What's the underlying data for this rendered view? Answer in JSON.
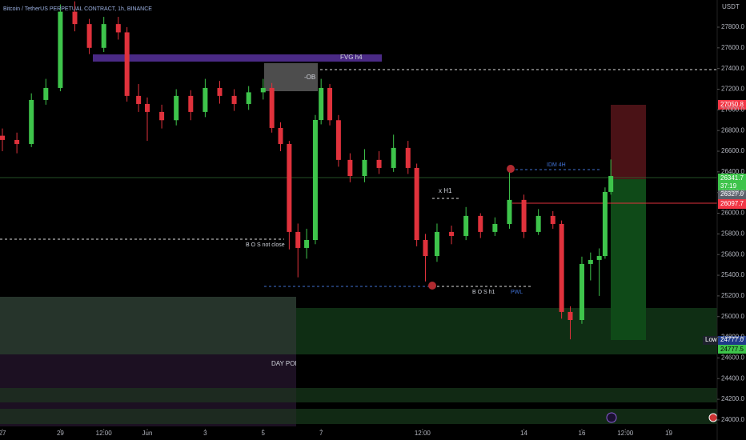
{
  "chart_data": {
    "type": "candlestick",
    "title": "Bitcoin / TetherUS PERPETUAL CONTRACT, 1h, BINANCE",
    "currency": "USDT",
    "up_color": "#3ec44b",
    "down_color": "#e0323c",
    "x": [
      0,
      0.5,
      1,
      1.5,
      2,
      2.5,
      3,
      3.5,
      4,
      4.3,
      4.7,
      5,
      5.5,
      6,
      6.5,
      7,
      7.5,
      8,
      8.5,
      9,
      9.3,
      9.6,
      9.9,
      10.2,
      10.5,
      10.8,
      11,
      11.3,
      11.6,
      12,
      12.5,
      13,
      13.5,
      14,
      14.3,
      14.6,
      15,
      15.5,
      16,
      16.5,
      17,
      17.5,
      18,
      18.5,
      19,
      19.3,
      19.6,
      20,
      20.3,
      20.6,
      20.8,
      21
    ],
    "open": [
      26750,
      26709,
      26670,
      27096,
      27212,
      27950,
      27830,
      27600,
      27830,
      27750,
      27135,
      27057,
      26980,
      26900,
      27135,
      26980,
      27212,
      27135,
      27057,
      27170,
      27212,
      26825,
      26670,
      25819,
      25664,
      25741,
      26902,
      27212,
      26900,
      26516,
      26360,
      26516,
      26438,
      26632,
      26438,
      25741,
      25586,
      25819,
      25780,
      25974,
      25819,
      25896,
      26129,
      25819,
      25974,
      25896,
      25045,
      24967,
      25509,
      25548,
      25586,
      26206
    ],
    "high": [
      26820,
      26780,
      27160,
      27300,
      28020,
      28050,
      27880,
      27900,
      27900,
      27800,
      27250,
      27120,
      27050,
      27200,
      27190,
      27300,
      27280,
      27200,
      27230,
      27300,
      27260,
      26880,
      26700,
      25900,
      25850,
      26950,
      27300,
      27250,
      26950,
      26580,
      26620,
      26600,
      26760,
      26700,
      26480,
      25800,
      25900,
      25880,
      26060,
      26000,
      25960,
      26400,
      26180,
      26040,
      26020,
      25930,
      25100,
      25580,
      25620,
      25660,
      26250,
      26520
    ],
    "low": [
      26600,
      26580,
      26640,
      27050,
      27180,
      27760,
      27540,
      27560,
      27680,
      27080,
      26980,
      26700,
      26820,
      26850,
      26900,
      26930,
      27060,
      26990,
      27000,
      27100,
      26780,
      26600,
      25650,
      25380,
      25560,
      25700,
      26860,
      26850,
      26450,
      26300,
      26300,
      26380,
      26400,
      26380,
      25680,
      25340,
      25530,
      25700,
      25740,
      25760,
      25780,
      25850,
      25760,
      25790,
      25850,
      24980,
      24780,
      24930,
      25350,
      25200,
      25560,
      26180
    ],
    "close": [
      26709,
      26670,
      27096,
      27212,
      27950,
      27830,
      27600,
      27830,
      27750,
      27135,
      27057,
      26980,
      26900,
      27135,
      26980,
      27212,
      27135,
      27057,
      27170,
      27212,
      26825,
      26670,
      25819,
      25664,
      25741,
      26902,
      27212,
      26900,
      26516,
      26360,
      26516,
      26438,
      26632,
      26438,
      25741,
      25586,
      25819,
      25780,
      25974,
      25819,
      25896,
      26129,
      25819,
      25974,
      25896,
      25045,
      24967,
      25509,
      25548,
      25586,
      26206,
      26360
    ],
    "xlim": [
      -0.083,
      24.67
    ],
    "xticks": [
      {
        "value": 0,
        "label": "27"
      },
      {
        "value": 2,
        "label": "29"
      },
      {
        "value": 3.5,
        "label": "12:00"
      },
      {
        "value": 5,
        "label": "Jun"
      },
      {
        "value": 7,
        "label": "3"
      },
      {
        "value": 9,
        "label": "5"
      },
      {
        "value": 11,
        "label": "7"
      },
      {
        "value": 14.5,
        "label": "12:00"
      },
      {
        "value": 18,
        "label": "14"
      },
      {
        "value": 20,
        "label": "16"
      },
      {
        "value": 21.5,
        "label": "12:00"
      },
      {
        "value": 23,
        "label": "19"
      }
    ],
    "ylim": [
      23806,
      28063
    ],
    "yticks": [
      {
        "value": 24000,
        "label": "24000.0"
      },
      {
        "value": 24200,
        "label": "24200.0"
      },
      {
        "value": 24400,
        "label": "24400.0"
      },
      {
        "value": 24600,
        "label": "24600.0"
      },
      {
        "value": 24800,
        "label": "24800.0"
      },
      {
        "value": 25000,
        "label": "25000.0"
      },
      {
        "value": 25200,
        "label": "25200.0"
      },
      {
        "value": 25400,
        "label": "25400.0"
      },
      {
        "value": 25600,
        "label": "25600.0"
      },
      {
        "value": 25800,
        "label": "25800.0"
      },
      {
        "value": 26000,
        "label": "26000.0"
      },
      {
        "value": 26200,
        "label": "26200.0"
      },
      {
        "value": 26400,
        "label": "26400.0"
      },
      {
        "value": 26600,
        "label": "26600.0"
      },
      {
        "value": 26800,
        "label": "26800.0"
      },
      {
        "value": 27000,
        "label": "27000.0"
      },
      {
        "value": 27200,
        "label": "27200.0"
      },
      {
        "value": 27400,
        "label": "27400.0"
      },
      {
        "value": 27600,
        "label": "27600.0"
      },
      {
        "value": 27800,
        "label": "27800.0"
      }
    ],
    "annotations": {
      "fvg": "FVG h4",
      "ob": "-OB",
      "bos_not_close": "B O S not close",
      "xh1": "x H1",
      "idm": "IDM 4H",
      "bos_h1": "B O S h1",
      "pwl": "PWL",
      "day_poi": "DAY POI",
      "low": "Low"
    },
    "price_labels": {
      "target": "27050.8",
      "last": "26341.7",
      "countdown": "37:19",
      "prev": "26327.0",
      "stop": "26097.7",
      "low": "24777.0",
      "low2": "24777.5"
    }
  }
}
